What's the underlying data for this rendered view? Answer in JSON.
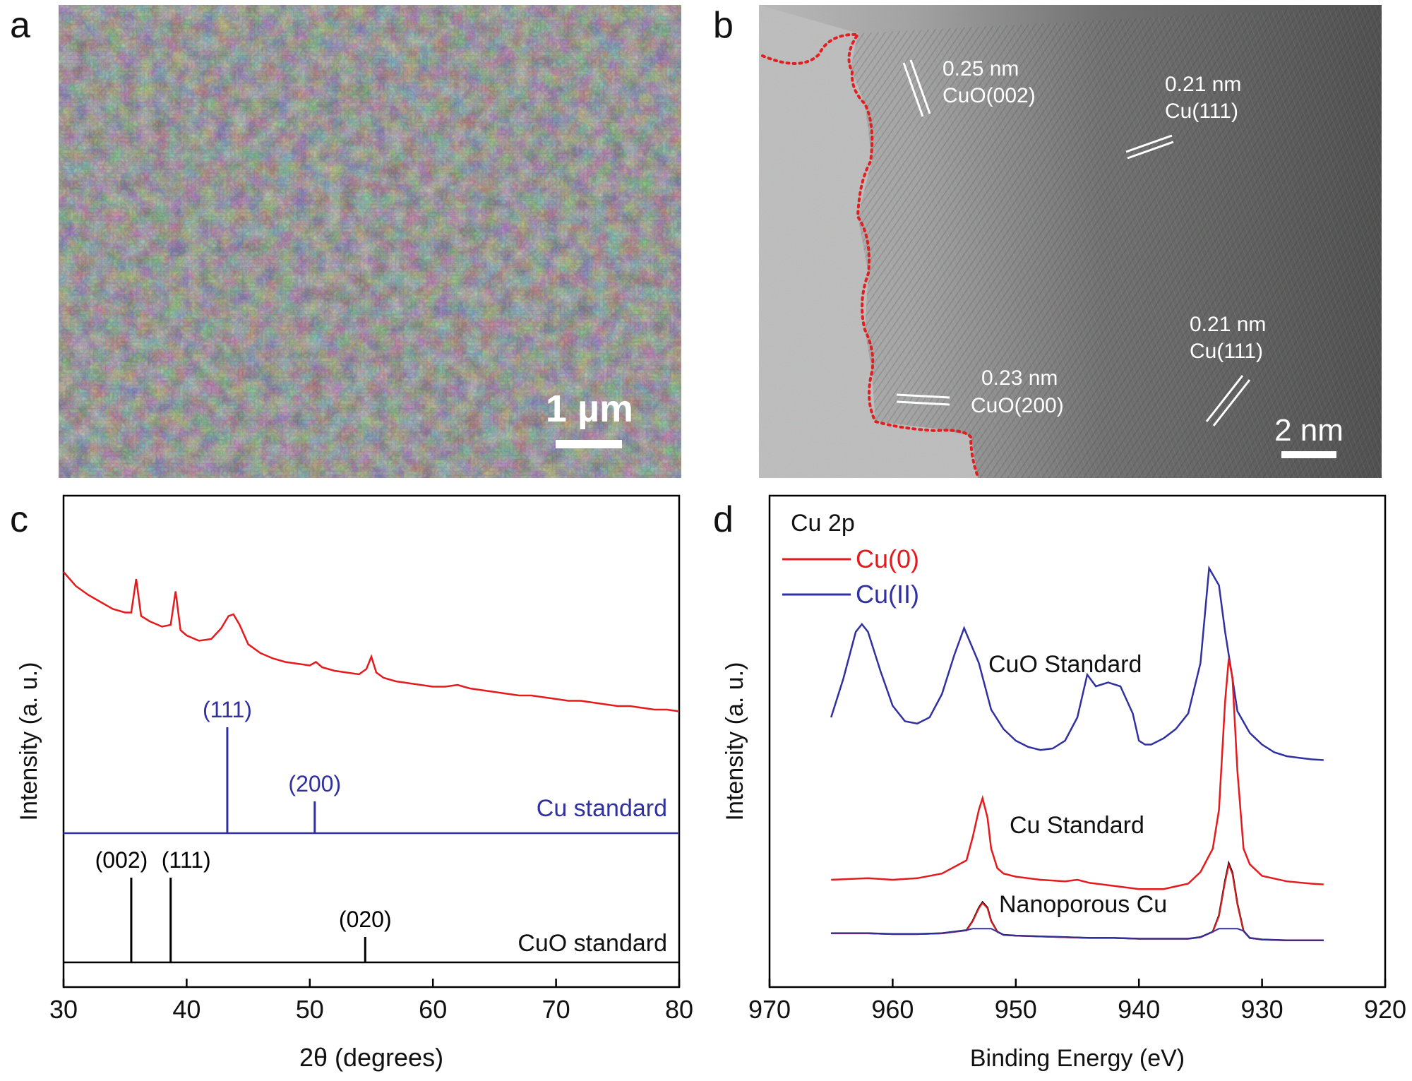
{
  "panels": {
    "a": {
      "letter": "a",
      "scale_bar": "1 µm"
    },
    "b": {
      "letter": "b",
      "scale_bar": "2 nm",
      "annotations": [
        {
          "spacing": "0.25 nm",
          "plane": "CuO(002)"
        },
        {
          "spacing": "0.21 nm",
          "plane": "Cu(111)"
        },
        {
          "spacing": "0.21 nm",
          "plane": "Cu(111)"
        },
        {
          "spacing": "0.23 nm",
          "plane": "CuO(200)"
        }
      ]
    },
    "c": {
      "letter": "c"
    },
    "d": {
      "letter": "d"
    }
  },
  "chart_data": [
    {
      "type": "line",
      "panel": "c",
      "xlabel": "2θ (degrees)",
      "ylabel": "Intensity (a. u.)",
      "xlim": [
        30,
        80
      ],
      "xticks": [
        "30",
        "40",
        "50",
        "60",
        "70",
        "80"
      ],
      "colors": {
        "sample": "#e41a1c",
        "cu_ref": "#3030a0",
        "cuo_ref": "#000000"
      },
      "series": [
        {
          "x": [
            30,
            31,
            32,
            33,
            34,
            35,
            35.5,
            35.9,
            36.3,
            37,
            38,
            38.7,
            39.1,
            39.5,
            40,
            41,
            42,
            42.8,
            43.4,
            43.8,
            44.3,
            45,
            46,
            47,
            48,
            49,
            50,
            50.5,
            51,
            52,
            53,
            54,
            54.6,
            55,
            55.4,
            56,
            57,
            58,
            59,
            60,
            61,
            62,
            63,
            64,
            65,
            66,
            67,
            68,
            69,
            70,
            71,
            72,
            73,
            74,
            75,
            76,
            77,
            78,
            79,
            80
          ],
          "y": [
            100,
            92,
            87,
            83,
            79,
            77,
            77,
            96,
            75,
            72,
            69,
            70,
            89,
            67,
            64,
            61,
            62,
            68,
            75,
            76,
            70,
            59,
            54,
            51,
            49,
            48,
            47,
            49,
            46,
            44,
            43,
            42,
            45,
            52,
            43,
            40,
            38,
            37,
            36,
            35,
            35,
            36,
            34,
            33,
            32,
            31,
            30,
            30,
            29,
            28,
            27,
            27,
            26,
            25,
            24,
            24,
            23,
            22,
            22,
            21
          ]
        }
      ],
      "reference_patterns": [
        {
          "name": "Cu standard",
          "peaks": [
            {
              "x": 43.3,
              "label": "(111)",
              "h": 100
            },
            {
              "x": 50.4,
              "label": "(200)",
              "h": 30
            }
          ]
        },
        {
          "name": "CuO standard",
          "peaks": [
            {
              "x": 35.5,
              "label": "(002)",
              "h": 100
            },
            {
              "x": 38.7,
              "label": "(111)",
              "h": 100
            },
            {
              "x": 54.5,
              "label": "(020)",
              "h": 30
            }
          ]
        }
      ]
    },
    {
      "type": "line",
      "panel": "d",
      "title": "Cu 2p",
      "xlabel": "Binding Energy  (eV)",
      "ylabel": "Intensity (a. u.)",
      "xlim": [
        970,
        920
      ],
      "xticks": [
        "970",
        "960",
        "950",
        "940",
        "930",
        "920"
      ],
      "legend": [
        {
          "name": "Cu(0)",
          "color": "#e41a1c"
        },
        {
          "name": "Cu(II)",
          "color": "#3030a0"
        }
      ],
      "series": [
        {
          "name": "CuO Standard",
          "color": "#3030a0",
          "x": [
            965,
            964,
            963,
            962.5,
            962,
            961,
            960,
            959,
            958,
            957,
            956,
            955,
            954.2,
            953,
            952,
            951,
            950,
            949,
            948,
            947,
            946,
            945,
            944.2,
            943.5,
            942.5,
            941.5,
            940.5,
            940,
            939.5,
            939,
            938,
            937,
            936,
            935,
            934.3,
            933.5,
            933,
            932.5,
            932,
            931,
            930,
            929,
            928,
            927,
            926,
            925
          ],
          "y": [
            0.9,
            1.4,
            2.0,
            2.1,
            2.0,
            1.5,
            1.05,
            0.85,
            0.82,
            0.9,
            1.2,
            1.7,
            2.05,
            1.6,
            1.0,
            0.75,
            0.6,
            0.52,
            0.48,
            0.5,
            0.6,
            0.9,
            1.45,
            1.3,
            1.35,
            1.3,
            0.95,
            0.6,
            0.55,
            0.55,
            0.63,
            0.75,
            0.95,
            1.6,
            2.82,
            2.6,
            2.0,
            1.5,
            0.98,
            0.7,
            0.55,
            0.45,
            0.4,
            0.38,
            0.36,
            0.35
          ]
        },
        {
          "name": "Cu Standard",
          "color": "#e41a1c",
          "x": [
            965,
            962,
            960,
            958,
            956,
            954,
            953.5,
            953,
            952.7,
            952.3,
            952,
            951.5,
            951,
            950,
            948,
            946,
            945,
            944,
            942,
            940,
            939,
            938,
            936,
            935,
            934,
            933.5,
            933,
            932.7,
            932.4,
            932,
            931.5,
            931,
            930,
            928,
            926,
            925
          ],
          "y": [
            0.2,
            0.22,
            0.2,
            0.22,
            0.28,
            0.45,
            0.75,
            1.1,
            1.25,
            1.0,
            0.6,
            0.35,
            0.28,
            0.24,
            0.2,
            0.18,
            0.2,
            0.16,
            0.12,
            0.08,
            0.08,
            0.08,
            0.15,
            0.3,
            0.6,
            1.1,
            2.5,
            3.05,
            2.8,
            1.6,
            0.6,
            0.4,
            0.25,
            0.18,
            0.15,
            0.14
          ]
        },
        {
          "name": "Nanoporous Cu",
          "color": "#000000",
          "x": [
            965,
            962,
            960,
            958,
            956,
            954,
            953.5,
            953,
            952.7,
            952.3,
            952,
            951.5,
            951,
            950,
            948,
            946,
            944,
            942,
            940,
            938,
            936,
            935,
            934,
            933.5,
            933,
            932.7,
            932.4,
            932,
            931.5,
            931,
            930,
            928,
            926,
            925
          ],
          "y": [
            0.12,
            0.12,
            0.11,
            0.11,
            0.12,
            0.16,
            0.28,
            0.45,
            0.52,
            0.45,
            0.28,
            0.14,
            0.1,
            0.09,
            0.08,
            0.07,
            0.06,
            0.06,
            0.05,
            0.05,
            0.05,
            0.07,
            0.14,
            0.35,
            0.8,
            1.02,
            0.9,
            0.5,
            0.15,
            0.06,
            0.04,
            0.03,
            0.03,
            0.03
          ]
        }
      ]
    }
  ]
}
